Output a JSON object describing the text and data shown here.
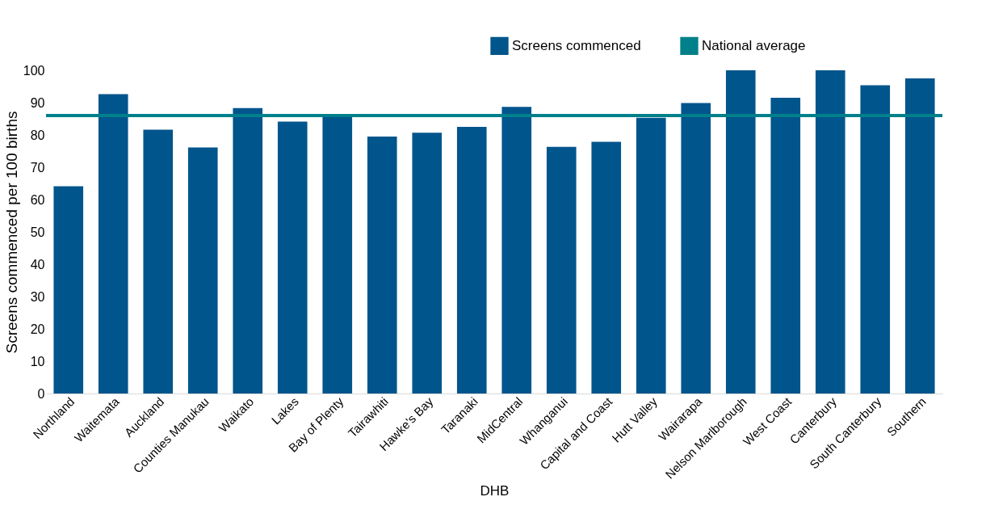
{
  "chart_data": {
    "type": "bar",
    "xlabel": "DHB",
    "ylabel": "Screens commenced per 100 births",
    "categories": [
      "Northland",
      "Waitemata",
      "Auckland",
      "Counties Manukau",
      "Waikato",
      "Lakes",
      "Bay of Plenty",
      "Tairawhiti",
      "Hawke's Bay",
      "Taranaki",
      "MidCentral",
      "Whanganui",
      "Capital and Coast",
      "Hutt Valley",
      "Wairarapa",
      "Nelson Marlborough",
      "West Coast",
      "Canterbury",
      "South Canterbury",
      "Southern"
    ],
    "series": [
      {
        "name": "Screens commenced",
        "color": "#00558c",
        "values": [
          64.1,
          92.6,
          81.6,
          76.1,
          88.3,
          84.1,
          86.4,
          79.5,
          80.7,
          82.5,
          88.7,
          76.3,
          77.9,
          85.3,
          89.9,
          100,
          91.5,
          100,
          95.4,
          97.5
        ]
      }
    ],
    "ref_lines": [
      {
        "axis": "y",
        "value": 86,
        "label": "National average",
        "color": "#00808a"
      }
    ],
    "ylim": [
      0,
      100
    ],
    "yticks": [
      0,
      10,
      20,
      30,
      40,
      50,
      60,
      70,
      80,
      90,
      100
    ],
    "grid": false,
    "legend": "top right"
  }
}
